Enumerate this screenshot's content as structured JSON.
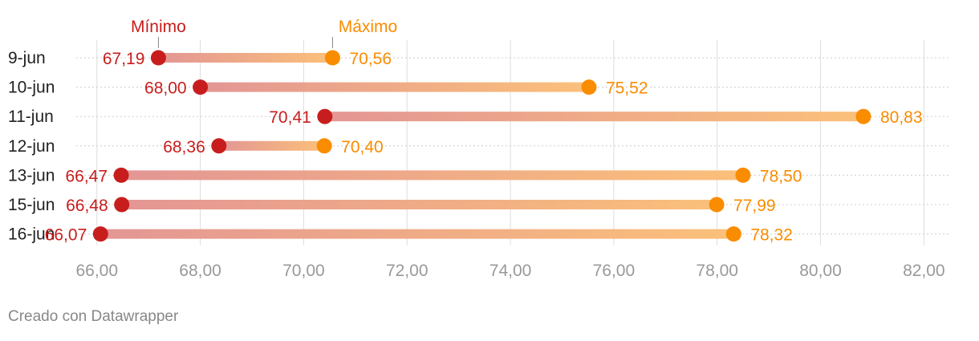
{
  "chart_data": {
    "type": "range-dot",
    "legend": {
      "min_label": "Mínimo",
      "max_label": "Máximo"
    },
    "categories": [
      "9-jun",
      "10-jun",
      "11-jun",
      "12-jun",
      "13-jun",
      "15-jun",
      "16-jun"
    ],
    "series": [
      {
        "name": "Mínimo",
        "values": [
          67.19,
          68.0,
          70.41,
          68.36,
          66.47,
          66.48,
          66.07
        ],
        "labels": [
          "67,19",
          "68,00",
          "70,41",
          "68,36",
          "66,47",
          "66,48",
          "66,07"
        ]
      },
      {
        "name": "Máximo",
        "values": [
          70.56,
          75.52,
          80.83,
          70.4,
          78.5,
          77.99,
          78.32
        ],
        "labels": [
          "70,56",
          "75,52",
          "80,83",
          "70,40",
          "78,50",
          "77,99",
          "78,32"
        ]
      }
    ],
    "xlim": [
      65.6,
      82.6
    ],
    "xticks": [
      66,
      68,
      70,
      72,
      74,
      76,
      78,
      80,
      82
    ],
    "xtick_labels": [
      "66,00",
      "68,00",
      "70,00",
      "72,00",
      "74,00",
      "76,00",
      "78,00",
      "80,00",
      "82,00"
    ],
    "grid": true,
    "colors": {
      "min": "#c71e1d",
      "max": "#fa8c00",
      "bar_start": "#e39694",
      "bar_end": "#fbc07a",
      "grid": "#dddddd",
      "tick_label": "#999999",
      "category_label": "#222222"
    }
  },
  "footer": {
    "credit": "Creado con Datawrapper"
  }
}
